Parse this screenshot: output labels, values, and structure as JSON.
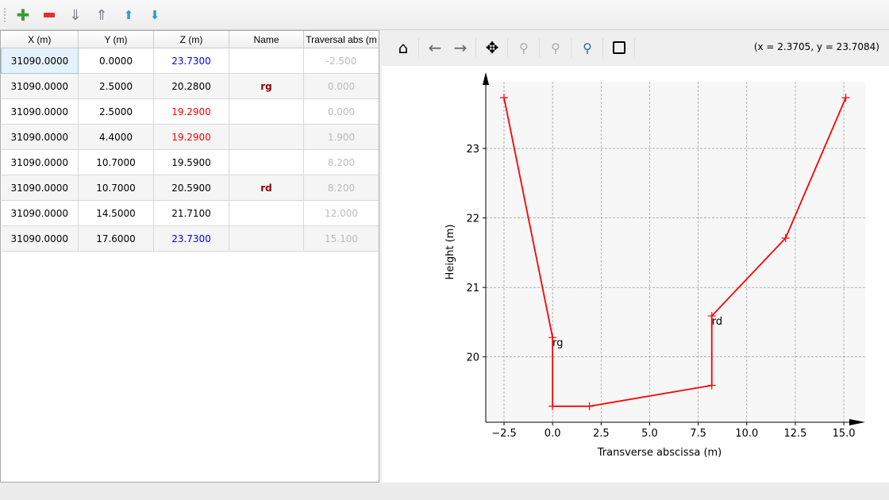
{
  "toolbar": {
    "items": [
      {
        "name": "add-row",
        "icon": "plus-icon",
        "color": "#3a9a3a"
      },
      {
        "name": "remove-row",
        "icon": "minus-icon",
        "color": "#e03030"
      },
      {
        "name": "sort-ascending",
        "icon": "sort-down-icon"
      },
      {
        "name": "sort-descending",
        "icon": "sort-up-icon"
      },
      {
        "name": "move-up",
        "icon": "arrow-up-icon"
      },
      {
        "name": "move-down",
        "icon": "arrow-down-icon"
      }
    ]
  },
  "table": {
    "headers": [
      "X (m)",
      "Y (m)",
      "Z (m)",
      "Name",
      "Traversal abs (m"
    ],
    "rows": [
      [
        "31090.0000",
        "0.0000",
        "23.7300",
        "",
        "-2.500"
      ],
      [
        "31090.0000",
        "2.5000",
        "20.2800",
        "rg",
        "0.000"
      ],
      [
        "31090.0000",
        "2.5000",
        "19.2900",
        "",
        "0.000"
      ],
      [
        "31090.0000",
        "4.4000",
        "19.2900",
        "",
        "1.900"
      ],
      [
        "31090.0000",
        "10.7000",
        "19.5900",
        "",
        "8.200"
      ],
      [
        "31090.0000",
        "10.7000",
        "20.5900",
        "rd",
        "8.200"
      ],
      [
        "31090.0000",
        "14.5000",
        "21.7100",
        "",
        "12.000"
      ],
      [
        "31090.0000",
        "17.6000",
        "23.7300",
        "",
        "15.100"
      ]
    ],
    "z_colors": [
      "#0000ff",
      "#000000",
      "#ff0000",
      "#ff0000",
      "#000000",
      "#000000",
      "#000000",
      "#0000ff"
    ]
  },
  "plot_toolbar": {
    "coords": "(x = 2.3705,  y = 23.7084)"
  },
  "chart_data": {
    "type": "line",
    "xlabel": "Transverse abscissa (m)",
    "ylabel": "Height (m)",
    "xlim": [
      -3.44,
      16.1
    ],
    "ylim": [
      19.06,
      23.96
    ],
    "xticks": [
      -2.5,
      0,
      2.5,
      5,
      7.5,
      10,
      12.5,
      15
    ],
    "xtick_labels": [
      "−2.5",
      "0.0",
      "2.5",
      "5.0",
      "7.5",
      "10.0",
      "12.5",
      "15.0"
    ],
    "yticks": [
      20,
      21,
      22,
      23
    ],
    "ytick_labels": [
      "20",
      "21",
      "22",
      "23"
    ],
    "grid": true,
    "color": "#ff0000",
    "x": [
      -2.5,
      0,
      0,
      1.9,
      8.2,
      8.2,
      12,
      15.1
    ],
    "y": [
      23.73,
      20.28,
      19.29,
      19.29,
      19.59,
      20.59,
      21.71,
      23.73
    ],
    "annotations": [
      {
        "text": "rg",
        "x": 0,
        "y": 20.28
      },
      {
        "text": "rd",
        "x": 8.2,
        "y": 20.59
      }
    ]
  }
}
